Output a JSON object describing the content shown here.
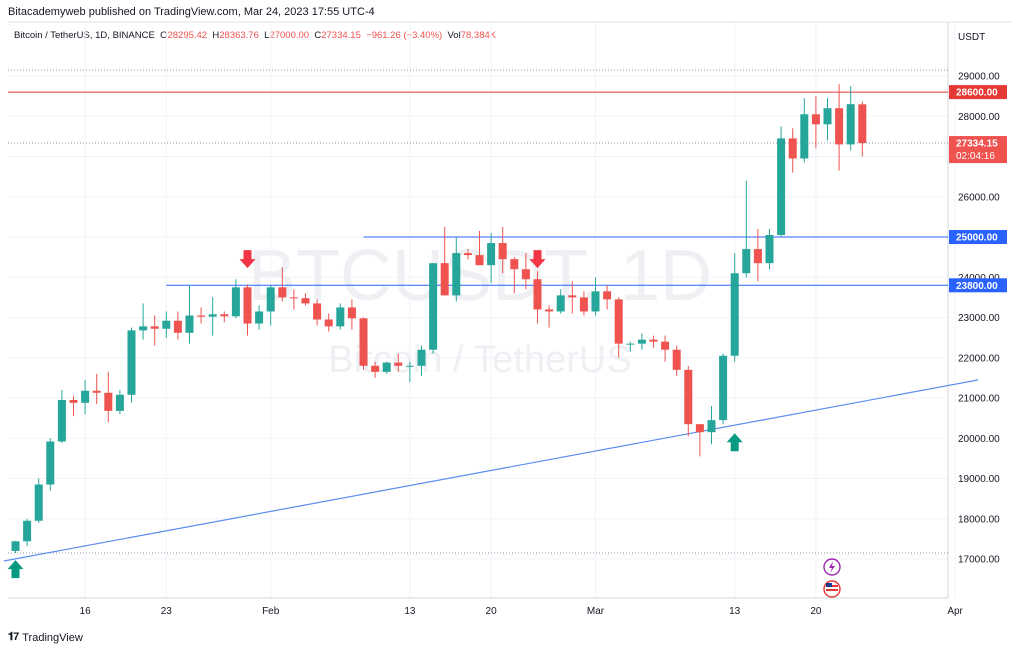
{
  "header": {
    "publisher": "Bitacademyweb published on TradingView.com, Mar 24, 2023 17:55 UTC-4"
  },
  "legend": {
    "symbol": "Bitcoin / TetherUS, 1D, BINANCE",
    "open_label": "O",
    "open": "28295.42",
    "high_label": "H",
    "high": "28363.76",
    "low_label": "L",
    "low": "27000.00",
    "close_label": "C",
    "close": "27334.15",
    "change": "−961.26 (−3.40%)",
    "volume_label": "Vol",
    "volume": "78.384K"
  },
  "watermark": {
    "line1": "BTCUSDT, 1D",
    "line2": "Bitcoin / TetherUS"
  },
  "footer": {
    "brand": "TradingView"
  },
  "colors": {
    "up": "#26a69a",
    "down": "#ef5350",
    "line": "#2962ff",
    "hline_red": "#e53935",
    "grid": "#f0f3fa",
    "axis_text": "#131722"
  },
  "chart_data": {
    "type": "candlestick",
    "currency_label": "USDT",
    "ylim": [
      16150,
      29700
    ],
    "y_ticks": [
      "17000.00",
      "18000.00",
      "19000.00",
      "20000.00",
      "21000.00",
      "22000.00",
      "23000.00",
      "24000.00",
      "25000.00",
      "26000.00",
      "27000.00",
      "28000.00",
      "29000.00"
    ],
    "x_ticks": [
      {
        "label": "16",
        "date": "2023-01-16"
      },
      {
        "label": "23",
        "date": "2023-01-23"
      },
      {
        "label": "Feb",
        "date": "2023-02-01"
      },
      {
        "label": "13",
        "date": "2023-02-13"
      },
      {
        "label": "20",
        "date": "2023-02-20"
      },
      {
        "label": "Mar",
        "date": "2023-03-01"
      },
      {
        "label": "13",
        "date": "2023-03-13"
      },
      {
        "label": "20",
        "date": "2023-03-20"
      },
      {
        "label": "Apr",
        "date": "2023-04-01"
      }
    ],
    "candles": [
      {
        "date": "2023-01-10",
        "o": 17200,
        "h": 17450,
        "l": 17150,
        "c": 17440
      },
      {
        "date": "2023-01-11",
        "o": 17440,
        "h": 18000,
        "l": 17320,
        "c": 17950
      },
      {
        "date": "2023-01-12",
        "o": 17950,
        "h": 19000,
        "l": 17900,
        "c": 18850
      },
      {
        "date": "2023-01-13",
        "o": 18850,
        "h": 20000,
        "l": 18700,
        "c": 19920
      },
      {
        "date": "2023-01-14",
        "o": 19920,
        "h": 21200,
        "l": 19880,
        "c": 20950
      },
      {
        "date": "2023-01-15",
        "o": 20950,
        "h": 21050,
        "l": 20550,
        "c": 20880
      },
      {
        "date": "2023-01-16",
        "o": 20880,
        "h": 21450,
        "l": 20600,
        "c": 21180
      },
      {
        "date": "2023-01-17",
        "o": 21180,
        "h": 21600,
        "l": 20850,
        "c": 21130
      },
      {
        "date": "2023-01-18",
        "o": 21130,
        "h": 21650,
        "l": 20400,
        "c": 20680
      },
      {
        "date": "2023-01-19",
        "o": 20680,
        "h": 21200,
        "l": 20600,
        "c": 21080
      },
      {
        "date": "2023-01-20",
        "o": 21080,
        "h": 22750,
        "l": 20880,
        "c": 22680
      },
      {
        "date": "2023-01-21",
        "o": 22680,
        "h": 23350,
        "l": 22450,
        "c": 22780
      },
      {
        "date": "2023-01-22",
        "o": 22780,
        "h": 23050,
        "l": 22300,
        "c": 22720
      },
      {
        "date": "2023-01-23",
        "o": 22720,
        "h": 23150,
        "l": 22500,
        "c": 22920
      },
      {
        "date": "2023-01-24",
        "o": 22920,
        "h": 23150,
        "l": 22450,
        "c": 22620
      },
      {
        "date": "2023-01-25",
        "o": 22620,
        "h": 23800,
        "l": 22350,
        "c": 23050
      },
      {
        "date": "2023-01-26",
        "o": 23050,
        "h": 23250,
        "l": 22850,
        "c": 23020
      },
      {
        "date": "2023-01-27",
        "o": 23020,
        "h": 23500,
        "l": 22550,
        "c": 23080
      },
      {
        "date": "2023-01-28",
        "o": 23080,
        "h": 23150,
        "l": 22880,
        "c": 23030
      },
      {
        "date": "2023-01-29",
        "o": 23030,
        "h": 23950,
        "l": 22980,
        "c": 23750
      },
      {
        "date": "2023-01-30",
        "o": 23750,
        "h": 23820,
        "l": 22550,
        "c": 22850
      },
      {
        "date": "2023-01-31",
        "o": 22850,
        "h": 23300,
        "l": 22700,
        "c": 23150
      },
      {
        "date": "2023-02-01",
        "o": 23150,
        "h": 23800,
        "l": 22800,
        "c": 23750
      },
      {
        "date": "2023-02-02",
        "o": 23750,
        "h": 24250,
        "l": 23400,
        "c": 23500
      },
      {
        "date": "2023-02-03",
        "o": 23500,
        "h": 23700,
        "l": 23200,
        "c": 23480
      },
      {
        "date": "2023-02-04",
        "o": 23480,
        "h": 23600,
        "l": 23300,
        "c": 23350
      },
      {
        "date": "2023-02-05",
        "o": 23350,
        "h": 23450,
        "l": 22800,
        "c": 22950
      },
      {
        "date": "2023-02-06",
        "o": 22950,
        "h": 23100,
        "l": 22650,
        "c": 22780
      },
      {
        "date": "2023-02-07",
        "o": 22780,
        "h": 23350,
        "l": 22700,
        "c": 23250
      },
      {
        "date": "2023-02-08",
        "o": 23250,
        "h": 23450,
        "l": 22700,
        "c": 22980
      },
      {
        "date": "2023-02-09",
        "o": 22980,
        "h": 23000,
        "l": 21700,
        "c": 21800
      },
      {
        "date": "2023-02-10",
        "o": 21800,
        "h": 21900,
        "l": 21500,
        "c": 21650
      },
      {
        "date": "2023-02-11",
        "o": 21650,
        "h": 21900,
        "l": 21600,
        "c": 21880
      },
      {
        "date": "2023-02-12",
        "o": 21880,
        "h": 22100,
        "l": 21650,
        "c": 21800
      },
      {
        "date": "2023-02-13",
        "o": 21800,
        "h": 21900,
        "l": 21400,
        "c": 21800
      },
      {
        "date": "2023-02-14",
        "o": 21800,
        "h": 22300,
        "l": 21550,
        "c": 22200
      },
      {
        "date": "2023-02-15",
        "o": 22200,
        "h": 24350,
        "l": 22100,
        "c": 24350
      },
      {
        "date": "2023-02-16",
        "o": 24350,
        "h": 25250,
        "l": 23550,
        "c": 23550
      },
      {
        "date": "2023-02-17",
        "o": 23550,
        "h": 25000,
        "l": 23400,
        "c": 24600
      },
      {
        "date": "2023-02-18",
        "o": 24600,
        "h": 24700,
        "l": 24450,
        "c": 24550
      },
      {
        "date": "2023-02-19",
        "o": 24550,
        "h": 25150,
        "l": 24300,
        "c": 24300
      },
      {
        "date": "2023-02-20",
        "o": 24300,
        "h": 25100,
        "l": 23850,
        "c": 24850
      },
      {
        "date": "2023-02-21",
        "o": 24850,
        "h": 25250,
        "l": 24100,
        "c": 24450
      },
      {
        "date": "2023-02-22",
        "o": 24450,
        "h": 24500,
        "l": 23600,
        "c": 24200
      },
      {
        "date": "2023-02-23",
        "o": 24200,
        "h": 24600,
        "l": 23700,
        "c": 23950
      },
      {
        "date": "2023-02-24",
        "o": 23950,
        "h": 24150,
        "l": 22850,
        "c": 23200
      },
      {
        "date": "2023-02-25",
        "o": 23200,
        "h": 23300,
        "l": 22750,
        "c": 23150
      },
      {
        "date": "2023-02-26",
        "o": 23150,
        "h": 23700,
        "l": 23100,
        "c": 23550
      },
      {
        "date": "2023-02-27",
        "o": 23550,
        "h": 23900,
        "l": 23100,
        "c": 23500
      },
      {
        "date": "2023-02-28",
        "o": 23500,
        "h": 23650,
        "l": 23050,
        "c": 23150
      },
      {
        "date": "2023-03-01",
        "o": 23150,
        "h": 24000,
        "l": 23050,
        "c": 23650
      },
      {
        "date": "2023-03-02",
        "o": 23650,
        "h": 23800,
        "l": 23200,
        "c": 23450
      },
      {
        "date": "2023-03-03",
        "o": 23450,
        "h": 23500,
        "l": 22000,
        "c": 22350
      },
      {
        "date": "2023-03-04",
        "o": 22350,
        "h": 22400,
        "l": 22150,
        "c": 22350
      },
      {
        "date": "2023-03-05",
        "o": 22350,
        "h": 22600,
        "l": 22200,
        "c": 22450
      },
      {
        "date": "2023-03-06",
        "o": 22450,
        "h": 22550,
        "l": 22250,
        "c": 22400
      },
      {
        "date": "2023-03-07",
        "o": 22400,
        "h": 22550,
        "l": 21900,
        "c": 22200
      },
      {
        "date": "2023-03-08",
        "o": 22200,
        "h": 22300,
        "l": 21550,
        "c": 21700
      },
      {
        "date": "2023-03-09",
        "o": 21700,
        "h": 21800,
        "l": 20050,
        "c": 20350
      },
      {
        "date": "2023-03-10",
        "o": 20350,
        "h": 20350,
        "l": 19550,
        "c": 20150
      },
      {
        "date": "2023-03-11",
        "o": 20150,
        "h": 20800,
        "l": 19850,
        "c": 20450
      },
      {
        "date": "2023-03-12",
        "o": 20450,
        "h": 22100,
        "l": 20350,
        "c": 22050
      },
      {
        "date": "2023-03-13",
        "o": 22050,
        "h": 24600,
        "l": 21900,
        "c": 24100
      },
      {
        "date": "2023-03-14",
        "o": 24100,
        "h": 26400,
        "l": 24000,
        "c": 24700
      },
      {
        "date": "2023-03-15",
        "o": 24700,
        "h": 25200,
        "l": 23900,
        "c": 24350
      },
      {
        "date": "2023-03-16",
        "o": 24350,
        "h": 25200,
        "l": 24200,
        "c": 25050
      },
      {
        "date": "2023-03-17",
        "o": 25050,
        "h": 27750,
        "l": 25000,
        "c": 27450
      },
      {
        "date": "2023-03-18",
        "o": 27450,
        "h": 27700,
        "l": 26600,
        "c": 26950
      },
      {
        "date": "2023-03-19",
        "o": 26950,
        "h": 28450,
        "l": 26850,
        "c": 28050
      },
      {
        "date": "2023-03-20",
        "o": 28050,
        "h": 28500,
        "l": 27200,
        "c": 27800
      },
      {
        "date": "2023-03-21",
        "o": 27800,
        "h": 28450,
        "l": 27400,
        "c": 28200
      },
      {
        "date": "2023-03-22",
        "o": 28200,
        "h": 28800,
        "l": 26650,
        "c": 27300
      },
      {
        "date": "2023-03-23",
        "o": 27300,
        "h": 28750,
        "l": 27150,
        "c": 28300
      },
      {
        "date": "2023-03-24",
        "o": 28296,
        "h": 28364,
        "l": 27000,
        "c": 27334
      }
    ],
    "horizontal_lines": [
      {
        "price": 28600,
        "label": "28600.00",
        "kind": "full",
        "color": "#e53935"
      },
      {
        "price": 25000,
        "label": "25000.00",
        "start_date": "2023-02-09",
        "color": "#2962ff"
      },
      {
        "price": 23800,
        "label": "23800.00",
        "start_date": "2023-01-23",
        "color": "#2962ff"
      }
    ],
    "dotted_lines": [
      29150,
      27334,
      17150
    ],
    "price_label": {
      "price": 27334.15,
      "label": "27334.15",
      "countdown": "02:04:16"
    },
    "trendline": {
      "start": {
        "date": "2023-01-09",
        "price": 16950
      },
      "end": {
        "date": "2023-04-03",
        "price": 21450
      }
    },
    "arrows": [
      {
        "date": "2023-01-10",
        "price": 16750,
        "dir": "up"
      },
      {
        "date": "2023-01-30",
        "price": 24450,
        "dir": "down"
      },
      {
        "date": "2023-02-24",
        "price": 24450,
        "dir": "down"
      },
      {
        "date": "2023-03-13",
        "price": 19900,
        "dir": "up"
      }
    ]
  }
}
